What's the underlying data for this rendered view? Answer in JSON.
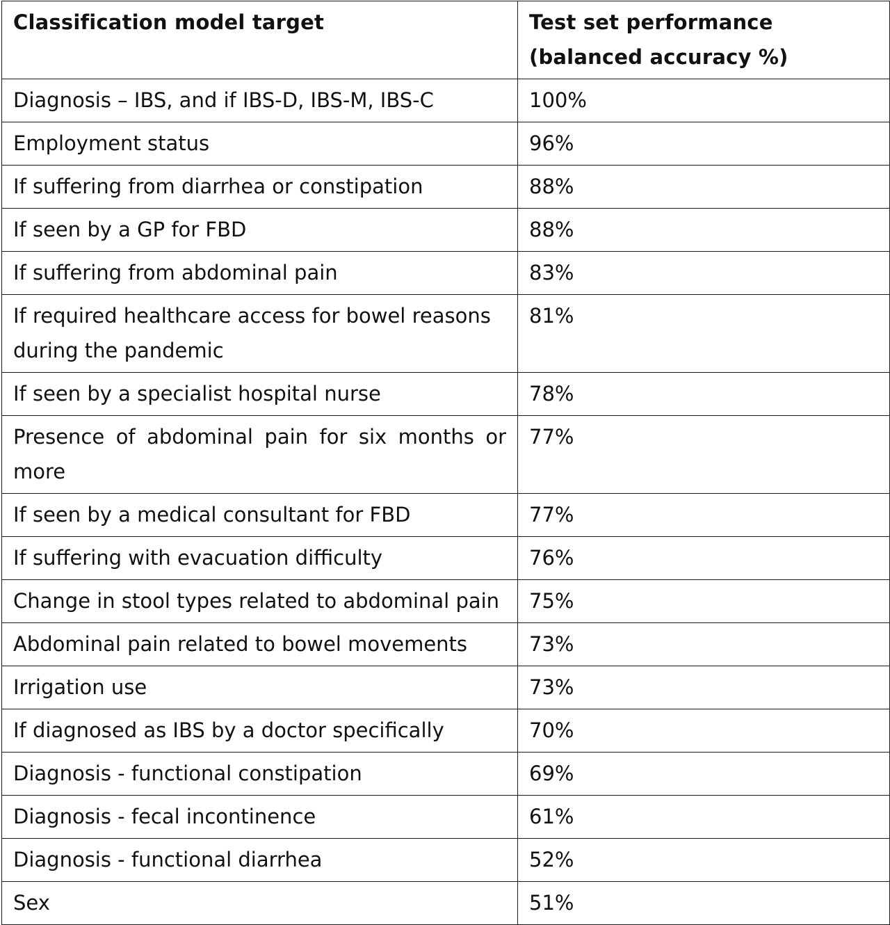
{
  "table": {
    "headers": {
      "target": "Classification model target",
      "performance": "Test set performance (balanced accuracy %)"
    },
    "rows": [
      {
        "target": "Diagnosis – IBS, and if IBS-D, IBS-M, IBS-C",
        "value": "100%"
      },
      {
        "target": "Employment status",
        "value": "96%"
      },
      {
        "target": "If suffering from diarrhea or constipation",
        "value": "88%"
      },
      {
        "target": "If seen by a GP for FBD",
        "value": "88%"
      },
      {
        "target": "If suffering from abdominal pain",
        "value": "83%"
      },
      {
        "target": "If required healthcare access for bowel reasons during the pandemic",
        "value": "81%"
      },
      {
        "target": "If seen by a specialist hospital nurse",
        "value": "78%"
      },
      {
        "target": "Presence of abdominal pain for six months or more",
        "value": "77%"
      },
      {
        "target": "If seen by a medical consultant for FBD",
        "value": "77%"
      },
      {
        "target": "If suffering with evacuation difficulty",
        "value": "76%"
      },
      {
        "target": "Change in stool types related to abdominal pain",
        "value": "75%"
      },
      {
        "target": "Abdominal pain related to bowel movements",
        "value": "73%"
      },
      {
        "target": "Irrigation use",
        "value": "73%"
      },
      {
        "target": "If diagnosed as IBS by a doctor specifically",
        "value": "70%"
      },
      {
        "target": "Diagnosis - functional constipation",
        "value": "69%"
      },
      {
        "target": "Diagnosis - fecal incontinence",
        "value": "61%"
      },
      {
        "target": "Diagnosis - functional diarrhea",
        "value": "52%"
      },
      {
        "target": "Sex",
        "value": "51%"
      }
    ]
  }
}
